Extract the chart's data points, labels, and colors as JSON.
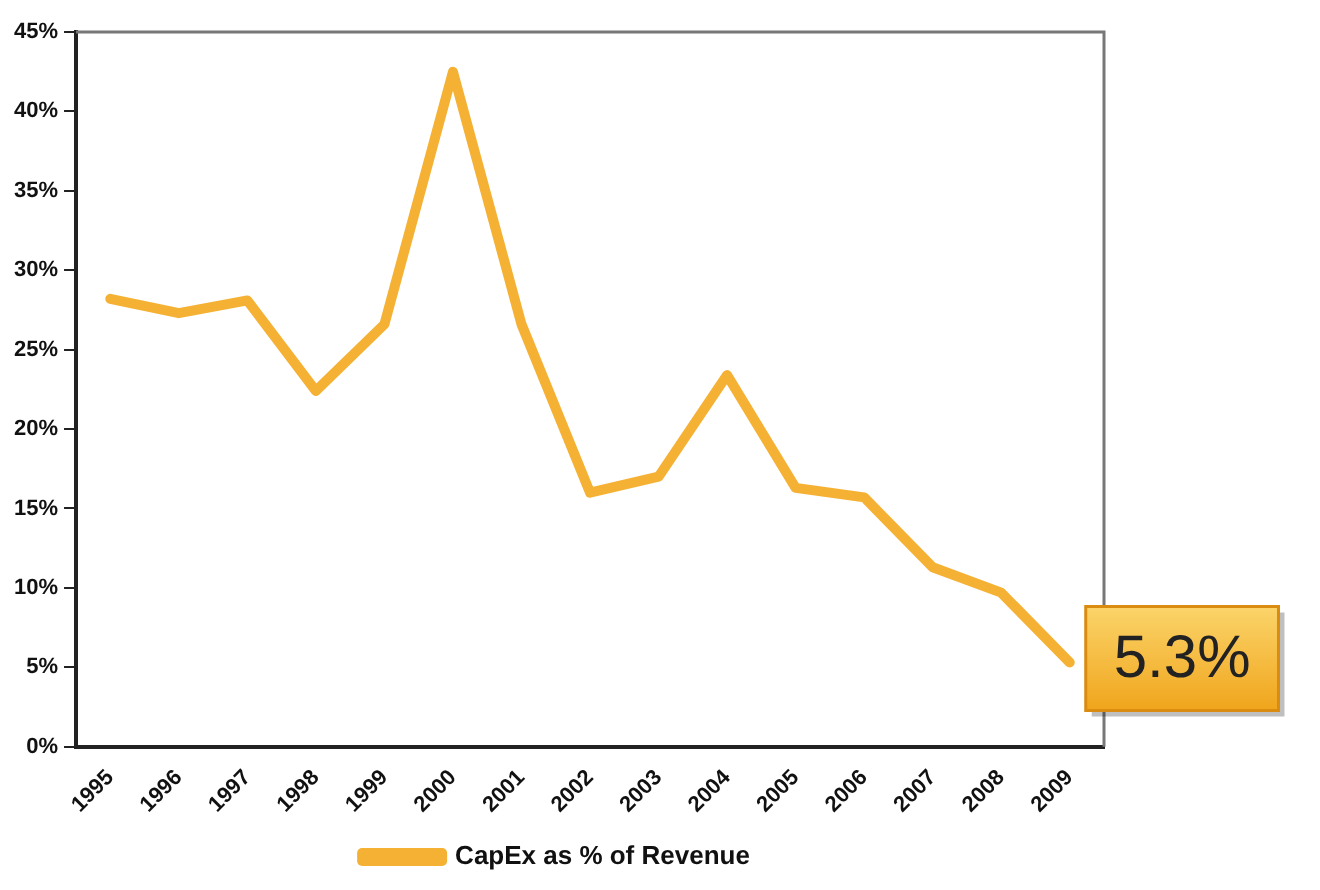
{
  "chart_data": {
    "type": "line",
    "categories": [
      "1995",
      "1996",
      "1997",
      "1998",
      "1999",
      "2000",
      "2001",
      "2002",
      "2003",
      "2004",
      "2005",
      "2006",
      "2007",
      "2008",
      "2009"
    ],
    "series": [
      {
        "name": "CapEx as % of Revenue",
        "color": "#f5b134",
        "values": [
          28.2,
          27.3,
          28.1,
          22.4,
          26.6,
          42.5,
          26.6,
          16.0,
          17.0,
          23.4,
          16.3,
          15.7,
          11.3,
          9.7,
          5.3
        ],
        "value_labels": [
          null,
          null,
          null,
          null,
          null,
          null,
          null,
          null,
          null,
          null,
          null,
          null,
          null,
          null,
          "5.3%"
        ]
      }
    ],
    "ylim": [
      0,
      45
    ],
    "yticks": [
      {
        "value": 0,
        "label": "0%"
      },
      {
        "value": 5,
        "label": "5%"
      },
      {
        "value": 10,
        "label": "10%"
      },
      {
        "value": 15,
        "label": "15%"
      },
      {
        "value": 20,
        "label": "20%"
      },
      {
        "value": 25,
        "label": "25%"
      },
      {
        "value": 30,
        "label": "30%"
      },
      {
        "value": 35,
        "label": "35%"
      },
      {
        "value": 40,
        "label": "40%"
      },
      {
        "value": 45,
        "label": "45%"
      }
    ],
    "grid": false,
    "legend": "bottom",
    "marker": "none",
    "line_style": "solid"
  }
}
